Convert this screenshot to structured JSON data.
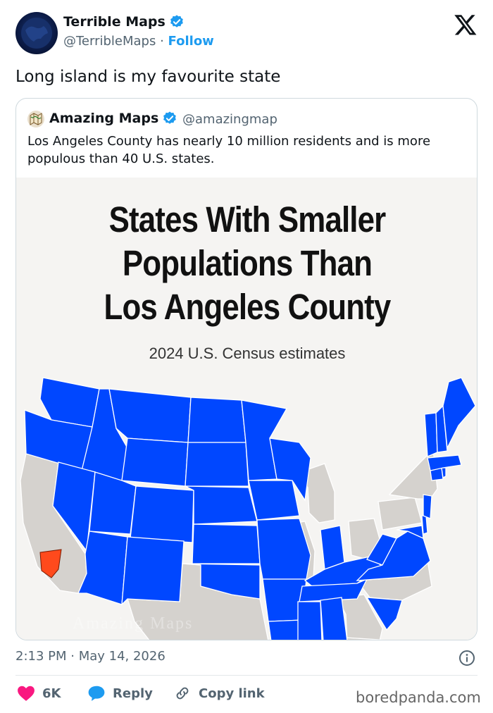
{
  "tweet": {
    "author_name": "Terrible Maps",
    "author_handle": "@TerribleMaps",
    "separator": " · ",
    "follow_label": "Follow",
    "text": "Long island is my favourite state",
    "timestamp": "2:13 PM · May 14, 2026"
  },
  "quote": {
    "author_name": "Amazing Maps",
    "author_handle": "@amazingmap",
    "text": "Los Angeles County has nearly 10 million residents and is more populous than 40 U.S. states."
  },
  "map_image": {
    "title_lines": [
      "States With Smaller",
      "Populations Than",
      "Los Angeles County"
    ],
    "subtitle": "2024 U.S. Census estimates",
    "watermark": "Amazing Maps",
    "colors": {
      "smaller_state": "#0047ff",
      "other_state": "#d5d2ce",
      "la_county": "#ff4a1c",
      "background": "#f5f4f2"
    }
  },
  "actions": {
    "like_count": "6K",
    "reply_label": "Reply",
    "copy_label": "Copy link"
  },
  "source_label": "boredpanda.com",
  "colors": {
    "link": "#1d9bf0",
    "heart": "#f91880",
    "muted": "#536471"
  }
}
